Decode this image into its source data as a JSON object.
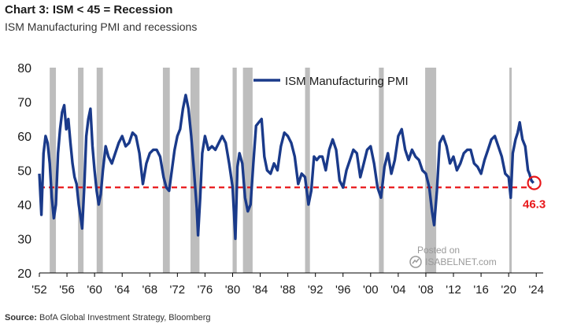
{
  "header": {
    "title": "Chart 3: ISM < 45 = Recession",
    "subtitle": "ISM Manufacturing PMI and recessions"
  },
  "footer": {
    "source_label": "Source:",
    "source_text": "BofA Global Investment Strategy, Bloomberg"
  },
  "watermark": {
    "line1": "Posted on",
    "line2": "ISABELNET.com"
  },
  "colors": {
    "series": "#1a3a8a",
    "threshold": "#e8171a",
    "recession": "#bdbdbd",
    "axis": "#000000"
  },
  "chart_data": {
    "type": "line",
    "xlim": [
      1952,
      2025
    ],
    "ylim": [
      20,
      80
    ],
    "yticks": [
      20,
      30,
      40,
      50,
      60,
      70,
      80
    ],
    "xticks": [
      {
        "year": 1952,
        "label": "'52"
      },
      {
        "year": 1956,
        "label": "'56"
      },
      {
        "year": 1960,
        "label": "'60"
      },
      {
        "year": 1964,
        "label": "'64"
      },
      {
        "year": 1968,
        "label": "'68"
      },
      {
        "year": 1972,
        "label": "'72"
      },
      {
        "year": 1976,
        "label": "'76"
      },
      {
        "year": 1980,
        "label": "'80"
      },
      {
        "year": 1984,
        "label": "'84"
      },
      {
        "year": 1988,
        "label": "'88"
      },
      {
        "year": 1992,
        "label": "'92"
      },
      {
        "year": 1996,
        "label": "'96"
      },
      {
        "year": 2000,
        "label": "'00"
      },
      {
        "year": 2004,
        "label": "'04"
      },
      {
        "year": 2008,
        "label": "'08"
      },
      {
        "year": 2012,
        "label": "'12"
      },
      {
        "year": 2016,
        "label": "'16"
      },
      {
        "year": 2020,
        "label": "'20"
      },
      {
        "year": 2024,
        "label": "'24"
      }
    ],
    "legend": {
      "label": "ISM Manufacturing PMI",
      "placement": "top-center"
    },
    "threshold": 45,
    "annotation": {
      "text": "46.3",
      "x": 2023.7,
      "y": 46.3
    },
    "recessions": [
      [
        1953.5,
        1954.4
      ],
      [
        1957.6,
        1958.4
      ],
      [
        1960.3,
        1961.2
      ],
      [
        1969.9,
        1970.9
      ],
      [
        1973.9,
        1975.2
      ],
      [
        1980.0,
        1980.6
      ],
      [
        1981.5,
        1982.9
      ],
      [
        1990.5,
        1991.2
      ],
      [
        2001.2,
        2001.9
      ],
      [
        2007.9,
        2009.5
      ],
      [
        2020.1,
        2020.4
      ]
    ],
    "series": [
      {
        "name": "ISM Manufacturing PMI",
        "x": [
          1952.0,
          1952.3,
          1952.6,
          1952.9,
          1953.2,
          1953.5,
          1953.8,
          1954.1,
          1954.4,
          1954.7,
          1955.0,
          1955.3,
          1955.6,
          1955.9,
          1956.2,
          1956.5,
          1956.8,
          1957.1,
          1957.4,
          1957.7,
          1958.0,
          1958.2,
          1958.5,
          1958.8,
          1959.1,
          1959.4,
          1959.7,
          1960.0,
          1960.3,
          1960.6,
          1960.9,
          1961.2,
          1961.6,
          1962.0,
          1962.5,
          1963.0,
          1963.5,
          1964.0,
          1964.5,
          1965.0,
          1965.5,
          1966.0,
          1966.5,
          1967.0,
          1967.5,
          1968.0,
          1968.5,
          1969.0,
          1969.5,
          1970.0,
          1970.4,
          1970.8,
          1971.2,
          1971.6,
          1972.0,
          1972.4,
          1972.8,
          1973.2,
          1973.6,
          1974.0,
          1974.4,
          1974.8,
          1975.0,
          1975.3,
          1975.6,
          1976.0,
          1976.5,
          1977.0,
          1977.5,
          1978.0,
          1978.5,
          1979.0,
          1979.5,
          1980.0,
          1980.4,
          1980.7,
          1981.0,
          1981.4,
          1981.8,
          1982.2,
          1982.6,
          1983.0,
          1983.4,
          1983.8,
          1984.2,
          1984.6,
          1985.0,
          1985.5,
          1986.0,
          1986.5,
          1987.0,
          1987.5,
          1988.0,
          1988.5,
          1989.0,
          1989.5,
          1990.0,
          1990.5,
          1991.0,
          1991.4,
          1991.8,
          1992.2,
          1992.6,
          1993.0,
          1993.5,
          1994.0,
          1994.5,
          1995.0,
          1995.5,
          1996.0,
          1996.5,
          1997.0,
          1997.5,
          1998.0,
          1998.5,
          1999.0,
          1999.5,
          2000.0,
          2000.5,
          2001.0,
          2001.5,
          2002.0,
          2002.5,
          2003.0,
          2003.5,
          2004.0,
          2004.5,
          2005.0,
          2005.5,
          2006.0,
          2006.5,
          2007.0,
          2007.5,
          2008.0,
          2008.5,
          2008.9,
          2009.2,
          2009.6,
          2010.0,
          2010.5,
          2011.0,
          2011.5,
          2012.0,
          2012.5,
          2013.0,
          2013.5,
          2014.0,
          2014.5,
          2015.0,
          2015.5,
          2016.0,
          2016.5,
          2017.0,
          2017.5,
          2018.0,
          2018.5,
          2019.0,
          2019.5,
          2020.0,
          2020.3,
          2020.6,
          2021.0,
          2021.3,
          2021.6,
          2022.0,
          2022.4,
          2022.8,
          2023.0,
          2023.3,
          2023.6
        ],
        "y": [
          49,
          37,
          55,
          60,
          58,
          52,
          42,
          36,
          40,
          55,
          62,
          67,
          69,
          62,
          65,
          58,
          52,
          48,
          46,
          40,
          36,
          33,
          45,
          60,
          65,
          68,
          57,
          50,
          44,
          40,
          43,
          50,
          57,
          54,
          52,
          55,
          58,
          60,
          57,
          58,
          61,
          60,
          55,
          46,
          52,
          55,
          56,
          56,
          54,
          48,
          45,
          44,
          50,
          56,
          60,
          62,
          68,
          72,
          68,
          60,
          50,
          39,
          31,
          42,
          55,
          60,
          56,
          57,
          56,
          58,
          60,
          58,
          52,
          45,
          30,
          51,
          55,
          52,
          42,
          38,
          40,
          52,
          63,
          64,
          65,
          54,
          50,
          49,
          52,
          50,
          57,
          61,
          60,
          58,
          54,
          46,
          49,
          48,
          40,
          44,
          54,
          53,
          54,
          54,
          50,
          56,
          59,
          56,
          47,
          45,
          50,
          53,
          56,
          55,
          48,
          52,
          56,
          57,
          52,
          45,
          42,
          51,
          55,
          49,
          53,
          60,
          62,
          56,
          53,
          56,
          54,
          53,
          50,
          49,
          45,
          38,
          34,
          44,
          58,
          60,
          57,
          52,
          54,
          50,
          52,
          55,
          56,
          56,
          52,
          51,
          49,
          53,
          56,
          59,
          60,
          57,
          54,
          49,
          48,
          42,
          55,
          59,
          61,
          64,
          59,
          57,
          50,
          49,
          47,
          46.3
        ]
      }
    ]
  }
}
